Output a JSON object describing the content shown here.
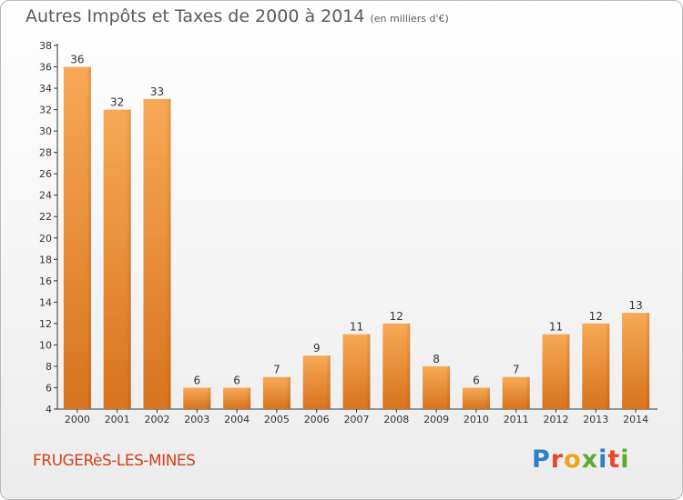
{
  "title": "Autres Impôts et Taxes de 2000 à 2014",
  "unit": "(en milliers d'€)",
  "town": "FRUGERèS-LES-MINES",
  "logo": {
    "text": "Proxiti",
    "colors": [
      "#2e7fc6",
      "#e8482b",
      "#f0a21b",
      "#5aaa2f",
      "#2e7fc6",
      "#e8482b",
      "#5aaa2f"
    ]
  },
  "chart_data": {
    "type": "bar",
    "categories": [
      "2000",
      "2001",
      "2002",
      "2003",
      "2004",
      "2005",
      "2006",
      "2007",
      "2008",
      "2009",
      "2010",
      "2011",
      "2012",
      "2013",
      "2014"
    ],
    "values": [
      36,
      32,
      33,
      6,
      6,
      7,
      9,
      11,
      12,
      8,
      6,
      7,
      11,
      12,
      13
    ],
    "ylim": [
      4,
      38
    ],
    "yticks": [
      4,
      6,
      8,
      10,
      12,
      14,
      16,
      18,
      20,
      22,
      24,
      26,
      28,
      30,
      32,
      34,
      36,
      38
    ],
    "grid": false,
    "colors": {
      "bar_light": "#f7a955",
      "bar_dark": "#d8731e",
      "axis": "#333333"
    }
  }
}
